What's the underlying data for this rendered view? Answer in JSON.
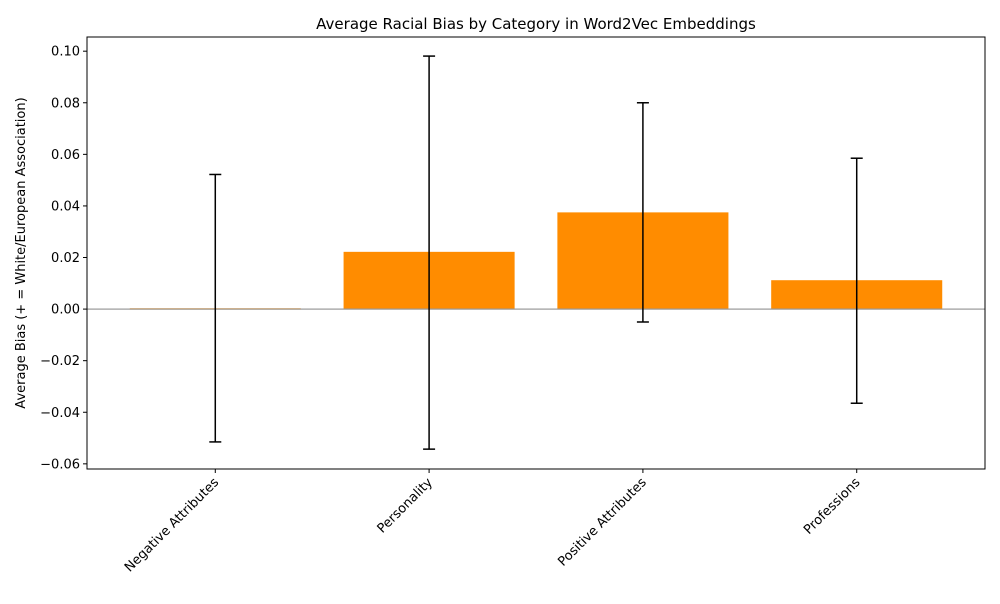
{
  "chart_data": {
    "type": "bar",
    "title": "Average Racial Bias by Category in Word2Vec Embeddings",
    "xlabel": "",
    "ylabel": "Average Bias (+ = White/European Association)",
    "categories": [
      "Negative Attributes",
      "Personality",
      "Positive Attributes",
      "Professions"
    ],
    "values": [
      0.0003,
      0.0222,
      0.0375,
      0.0112
    ],
    "error_bars": [
      {
        "lower": -0.0515,
        "upper": 0.0522
      },
      {
        "lower": -0.0543,
        "upper": 0.0981
      },
      {
        "lower": -0.005,
        "upper": 0.08
      },
      {
        "lower": -0.0365,
        "upper": 0.0585
      }
    ],
    "ylim": [
      -0.062,
      0.1055
    ],
    "yticks": [
      -0.06,
      -0.04,
      -0.02,
      0.0,
      0.02,
      0.04,
      0.06,
      0.08,
      0.1
    ],
    "ytick_labels": [
      "−0.06",
      "−0.04",
      "−0.02",
      "0.00",
      "0.02",
      "0.04",
      "0.06",
      "0.08",
      "0.10"
    ],
    "zero_line": true,
    "grid": false,
    "colors": {
      "bar": "#ff8c00",
      "error_bar": "#000000",
      "zero_line": "#999999",
      "axis": "#000000"
    }
  }
}
